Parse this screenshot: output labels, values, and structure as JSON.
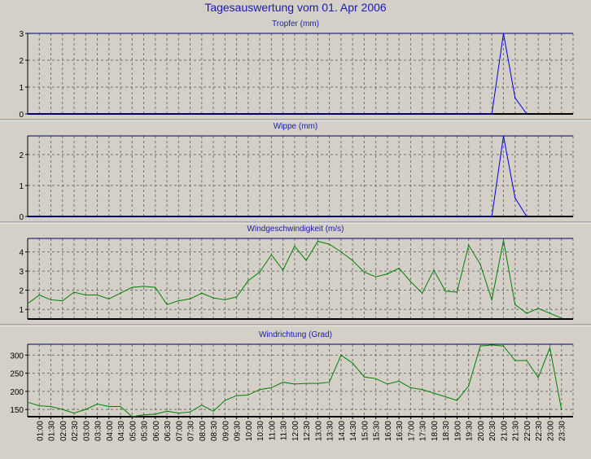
{
  "page_title": "Tagesauswertung vom 01. Apr 2006",
  "colors": {
    "background": "#d4d0c8",
    "plot_background": "#d4d0c8",
    "title": "#1a1ab0",
    "grid": "#707070",
    "rain_series": "#0000e0",
    "wind_series": "#008000",
    "axis": "#000000"
  },
  "x_tick_labels": [
    "01:00",
    "01:30",
    "02:00",
    "02:30",
    "03:00",
    "03:30",
    "04:00",
    "04:30",
    "05:00",
    "05:30",
    "06:00",
    "06:30",
    "07:00",
    "07:30",
    "08:00",
    "08:30",
    "09:00",
    "09:30",
    "10:00",
    "10:30",
    "11:00",
    "11:30",
    "12:00",
    "12:30",
    "13:00",
    "13:30",
    "14:00",
    "14:30",
    "15:00",
    "15:30",
    "16:00",
    "16:30",
    "17:00",
    "17:30",
    "18:00",
    "18:30",
    "19:00",
    "19:30",
    "20:00",
    "20:30",
    "21:00",
    "21:30",
    "22:00",
    "22:30",
    "23:00",
    "23:30"
  ],
  "chart_data": [
    {
      "type": "line",
      "title": "Tropfer (mm)",
      "series_color": "#0000e0",
      "ylim": [
        0,
        3
      ],
      "yticks": [
        0,
        1,
        2,
        3
      ],
      "grid": true,
      "x": [
        "00:30",
        "01:00",
        "01:30",
        "02:00",
        "02:30",
        "03:00",
        "03:30",
        "04:00",
        "04:30",
        "05:00",
        "05:30",
        "06:00",
        "06:30",
        "07:00",
        "07:30",
        "08:00",
        "08:30",
        "09:00",
        "09:30",
        "10:00",
        "10:30",
        "11:00",
        "11:30",
        "12:00",
        "12:30",
        "13:00",
        "13:30",
        "14:00",
        "14:30",
        "15:00",
        "15:30",
        "16:00",
        "16:30",
        "17:00",
        "17:30",
        "18:00",
        "18:30",
        "19:00",
        "19:30",
        "20:00",
        "20:30",
        "21:00",
        "21:30",
        "22:00",
        "22:30",
        "23:00",
        "23:30",
        "24:00"
      ],
      "values": [
        0,
        0,
        0,
        0,
        0,
        0,
        0,
        0,
        0,
        0,
        0,
        0,
        0,
        0,
        0,
        0,
        0,
        0,
        0,
        0,
        0,
        0,
        0,
        0,
        0,
        0,
        0,
        0,
        0,
        0,
        0,
        0,
        0,
        0,
        0,
        0,
        0,
        0,
        0,
        0,
        0,
        3.0,
        0.6,
        0,
        null,
        null,
        null,
        null
      ]
    },
    {
      "type": "line",
      "title": "Wippe (mm)",
      "series_color": "#0000e0",
      "ylim": [
        0,
        2.6
      ],
      "yticks": [
        0,
        1,
        2
      ],
      "grid": true,
      "x": [
        "00:30",
        "01:00",
        "01:30",
        "02:00",
        "02:30",
        "03:00",
        "03:30",
        "04:00",
        "04:30",
        "05:00",
        "05:30",
        "06:00",
        "06:30",
        "07:00",
        "07:30",
        "08:00",
        "08:30",
        "09:00",
        "09:30",
        "10:00",
        "10:30",
        "11:00",
        "11:30",
        "12:00",
        "12:30",
        "13:00",
        "13:30",
        "14:00",
        "14:30",
        "15:00",
        "15:30",
        "16:00",
        "16:30",
        "17:00",
        "17:30",
        "18:00",
        "18:30",
        "19:00",
        "19:30",
        "20:00",
        "20:30",
        "21:00",
        "21:30",
        "22:00",
        "22:30",
        "23:00",
        "23:30",
        "24:00"
      ],
      "values": [
        0,
        0,
        0,
        0,
        0,
        0,
        0,
        0,
        0,
        0,
        0,
        0,
        0,
        0,
        0,
        0,
        0,
        0,
        0,
        0,
        0,
        0,
        0,
        0,
        0,
        0,
        0,
        0,
        0,
        0,
        0,
        0,
        0,
        0,
        0,
        0,
        0,
        0,
        0,
        0,
        0,
        2.6,
        0.6,
        0,
        null,
        null,
        null,
        null
      ]
    },
    {
      "type": "line",
      "title": "Windgeschwindigkeit (m/s)",
      "series_color": "#008000",
      "ylim": [
        0.5,
        4.7
      ],
      "yticks": [
        1,
        2,
        3,
        4
      ],
      "grid": true,
      "x": [
        "00:30",
        "01:00",
        "01:30",
        "02:00",
        "02:30",
        "03:00",
        "03:30",
        "04:00",
        "04:30",
        "05:00",
        "05:30",
        "06:00",
        "06:30",
        "07:00",
        "07:30",
        "08:00",
        "08:30",
        "09:00",
        "09:30",
        "10:00",
        "10:30",
        "11:00",
        "11:30",
        "12:00",
        "12:30",
        "13:00",
        "13:30",
        "14:00",
        "14:30",
        "15:00",
        "15:30",
        "16:00",
        "16:30",
        "17:00",
        "17:30",
        "18:00",
        "18:30",
        "19:00",
        "19:30",
        "20:00",
        "20:30",
        "21:00",
        "21:30",
        "22:00",
        "22:30",
        "23:00",
        "23:30",
        "24:00"
      ],
      "values": [
        1.3,
        1.75,
        1.5,
        1.45,
        1.9,
        1.75,
        1.75,
        1.55,
        1.85,
        2.15,
        2.2,
        2.15,
        1.25,
        1.45,
        1.55,
        1.85,
        1.6,
        1.5,
        1.65,
        2.5,
        2.95,
        3.85,
        3.05,
        4.3,
        3.55,
        4.55,
        4.4,
        4.0,
        3.55,
        2.95,
        2.7,
        2.85,
        3.15,
        2.45,
        1.85,
        3.05,
        1.95,
        1.9,
        4.35,
        3.35,
        1.5,
        4.6,
        1.25,
        0.8,
        1.05,
        0.8,
        0.55,
        null
      ]
    },
    {
      "type": "line",
      "title": "Windrichtung (Grad)",
      "series_color": "#008000",
      "ylim": [
        130,
        330
      ],
      "yticks": [
        150,
        200,
        250,
        300
      ],
      "grid": true,
      "x": [
        "00:30",
        "01:00",
        "01:30",
        "02:00",
        "02:30",
        "03:00",
        "03:30",
        "04:00",
        "04:30",
        "05:00",
        "05:30",
        "06:00",
        "06:30",
        "07:00",
        "07:30",
        "08:00",
        "08:30",
        "09:00",
        "09:30",
        "10:00",
        "10:30",
        "11:00",
        "11:30",
        "12:00",
        "12:30",
        "13:00",
        "13:30",
        "14:00",
        "14:30",
        "15:00",
        "15:30",
        "16:00",
        "16:30",
        "17:00",
        "17:30",
        "18:00",
        "18:30",
        "19:00",
        "19:30",
        "20:00",
        "20:30",
        "21:00",
        "21:30",
        "22:00",
        "22:30",
        "23:00",
        "23:30",
        "24:00"
      ],
      "values": [
        170,
        160,
        158,
        150,
        140,
        150,
        165,
        158,
        158,
        130,
        135,
        137,
        145,
        140,
        143,
        162,
        145,
        175,
        188,
        190,
        205,
        210,
        225,
        220,
        222,
        222,
        225,
        300,
        278,
        240,
        235,
        220,
        228,
        210,
        205,
        195,
        185,
        175,
        215,
        325,
        328,
        325,
        285,
        285,
        238,
        320,
        150,
        null
      ]
    }
  ]
}
